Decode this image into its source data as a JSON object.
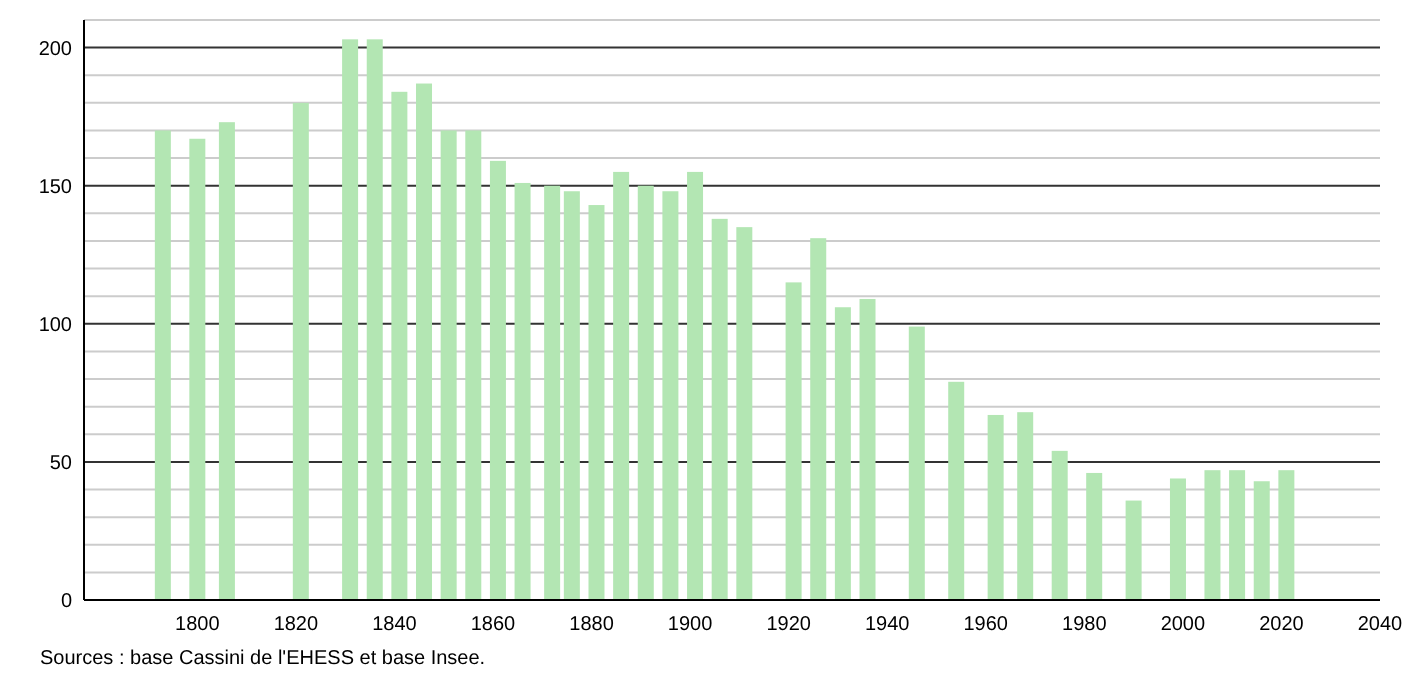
{
  "chart_data": {
    "type": "bar",
    "x": [
      1793,
      1800,
      1806,
      1821,
      1831,
      1836,
      1841,
      1846,
      1851,
      1856,
      1861,
      1866,
      1872,
      1876,
      1881,
      1886,
      1891,
      1896,
      1901,
      1906,
      1911,
      1921,
      1926,
      1931,
      1936,
      1946,
      1954,
      1962,
      1968,
      1975,
      1982,
      1990,
      1999,
      2006,
      2011,
      2016,
      2021
    ],
    "values": [
      170,
      167,
      173,
      180,
      203,
      203,
      184,
      187,
      170,
      170,
      159,
      151,
      150,
      148,
      143,
      155,
      150,
      148,
      155,
      138,
      135,
      115,
      131,
      106,
      109,
      99,
      79,
      67,
      68,
      54,
      46,
      36,
      44,
      47,
      47,
      43,
      47
    ],
    "color": "#b3e6b3",
    "xlim": [
      1777,
      2040
    ],
    "xticks": [
      1800,
      1820,
      1840,
      1860,
      1880,
      1900,
      1920,
      1940,
      1960,
      1980,
      2000,
      2020,
      2040
    ],
    "ylim": [
      0,
      210
    ],
    "yticks": [
      0,
      {
        "value": 10,
        "label": null
      },
      {
        "value": 20,
        "label": null
      },
      {
        "value": 30,
        "label": null
      },
      {
        "value": 40,
        "label": null
      },
      50,
      {
        "value": 60,
        "label": null
      },
      {
        "value": 70,
        "label": null
      },
      {
        "value": 80,
        "label": null
      },
      {
        "value": 90,
        "label": null
      },
      100,
      {
        "value": 110,
        "label": null
      },
      {
        "value": 120,
        "label": null
      },
      {
        "value": 130,
        "label": null
      },
      {
        "value": 140,
        "label": null
      },
      150,
      {
        "value": 160,
        "label": null
      },
      {
        "value": 170,
        "label": null
      },
      {
        "value": 180,
        "label": null
      },
      {
        "value": 190,
        "label": null
      },
      200,
      {
        "value": 210,
        "label": null
      }
    ],
    "grid": true,
    "annotations": [
      "Sources : base Cassini de l'EHESS et base Insee."
    ]
  }
}
